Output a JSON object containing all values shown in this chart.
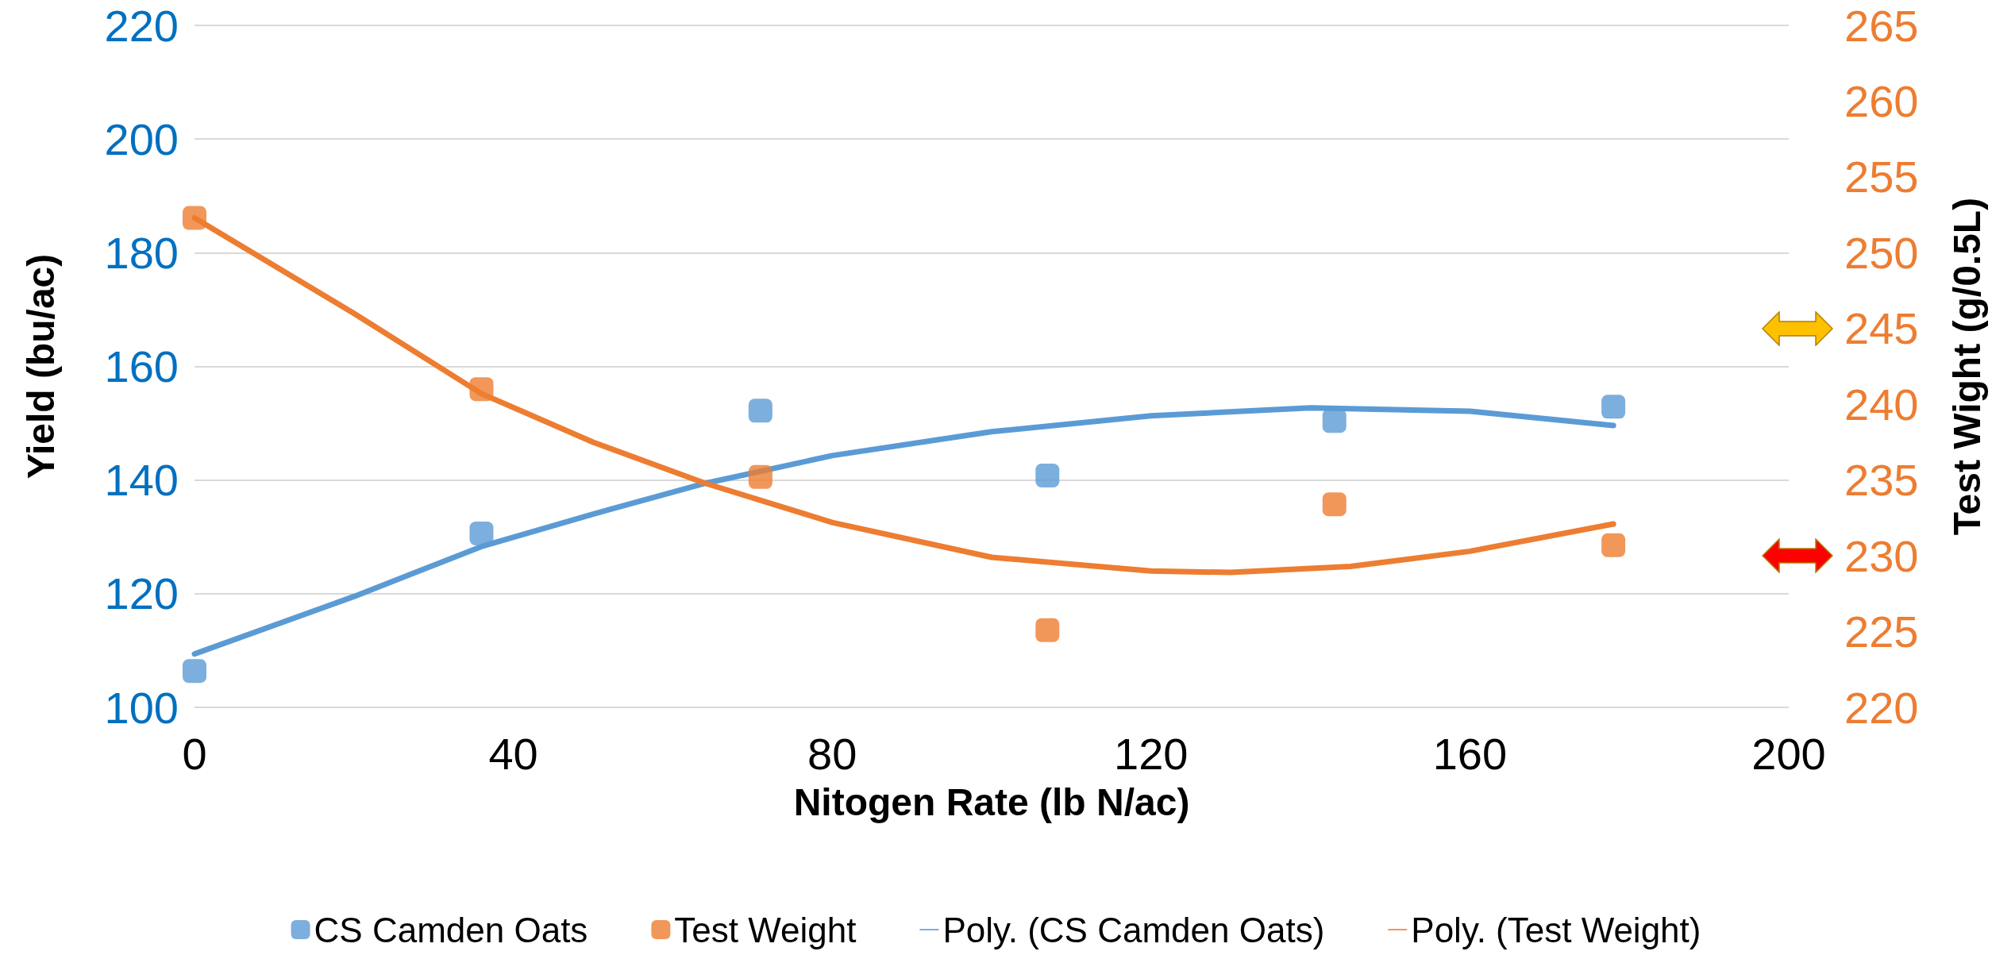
{
  "chart_data": {
    "type": "scatter",
    "xlabel": "Nitogen Rate (lb N/ac)",
    "ylabel": "Yield (bu/ac)",
    "y2label": "Test Wight (g/0.5L)",
    "xlim": [
      0,
      200
    ],
    "xticks": [
      0,
      40,
      80,
      120,
      160,
      200
    ],
    "ylim": [
      100,
      220
    ],
    "yticks": [
      100,
      120,
      140,
      160,
      180,
      200,
      220
    ],
    "y2lim": [
      220,
      265
    ],
    "y2ticks": [
      220,
      225,
      230,
      235,
      240,
      245,
      250,
      255,
      260,
      265
    ],
    "grid": "y",
    "legend": "bottom",
    "marker": "square",
    "series": [
      {
        "name": "CS Camden Oats",
        "color": "#5b9bd5",
        "x": [
          0,
          36,
          71,
          107,
          143,
          178
        ],
        "values": [
          106.4,
          130.6,
          152.2,
          140.8,
          150.4,
          152.9
        ]
      },
      {
        "name": "Test Weight",
        "axis": "y2",
        "color": "#ed7d31",
        "x": [
          0,
          36,
          71,
          107,
          143,
          178
        ],
        "values": [
          252.3,
          241.0,
          235.2,
          225.1,
          233.4,
          230.7
        ]
      },
      {
        "name": "Poly. (CS Camden Oats)",
        "type": "line",
        "marker": "none",
        "color": "#5b9bd5",
        "x": [
          0,
          20,
          36,
          50,
          64,
          80,
          100,
          120,
          140,
          160,
          178
        ],
        "values": [
          109.4,
          119.5,
          128.3,
          134,
          139.4,
          144.3,
          148.5,
          151.3,
          152.7,
          152.1,
          149.6
        ]
      },
      {
        "name": "Poly. (Test Weight)",
        "type": "line",
        "marker": "none",
        "axis": "y2",
        "color": "#ed7d31",
        "x": [
          0,
          20,
          36,
          50,
          64,
          80,
          100,
          120,
          130,
          145,
          160,
          178
        ],
        "values": [
          252.3,
          246,
          240.7,
          237.5,
          234.8,
          232.2,
          229.9,
          229.0,
          228.9,
          229.3,
          230.3,
          232.1
        ]
      }
    ]
  }
}
